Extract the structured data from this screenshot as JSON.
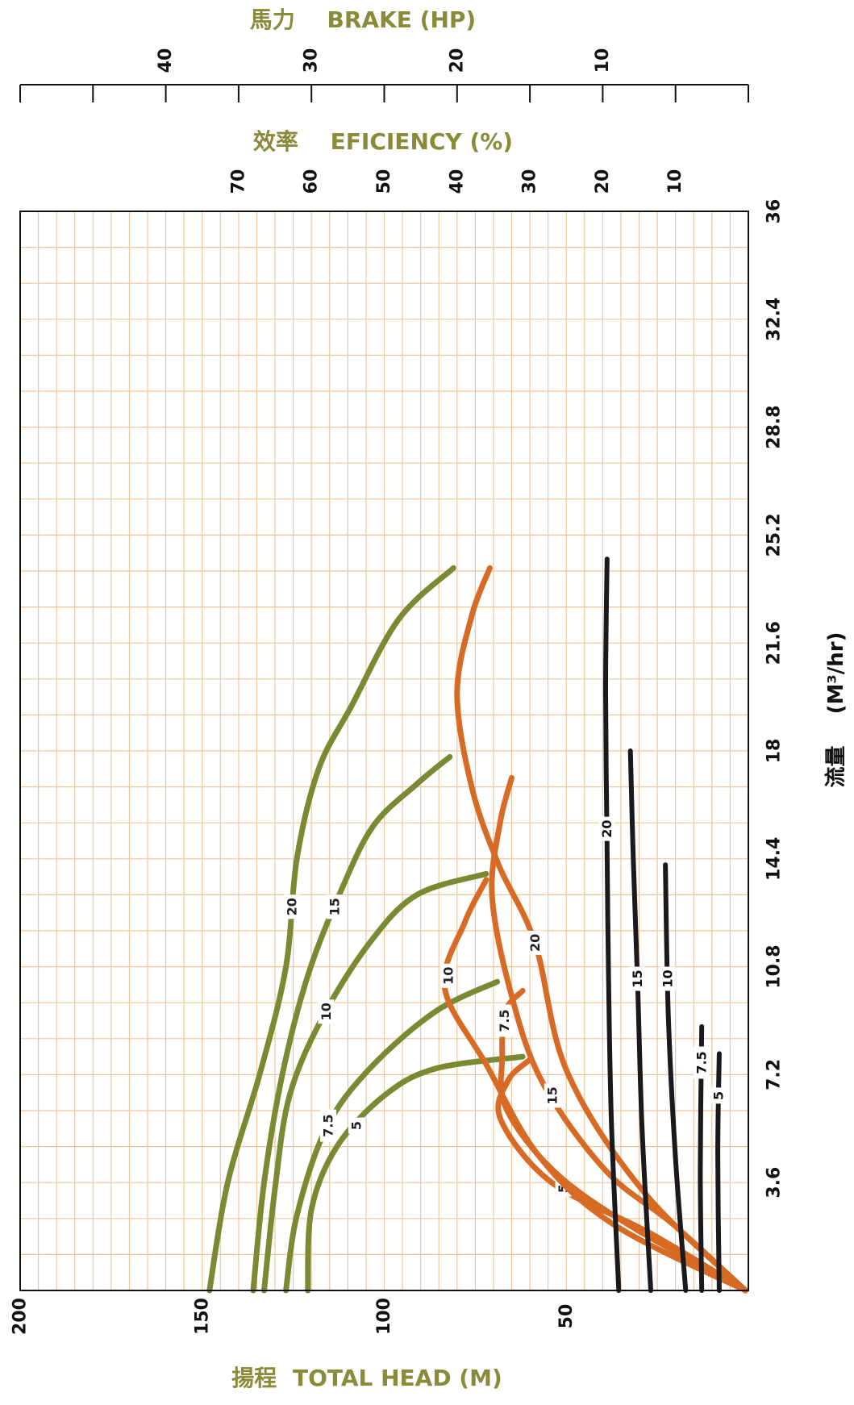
{
  "chart_data": {
    "type": "line",
    "axes": {
      "head": {
        "title_cn": "揚程",
        "title_en": "TOTAL HEAD (M)",
        "range": [
          0,
          200
        ],
        "ticks": [
          "50",
          "100",
          "150",
          "200"
        ]
      },
      "flow": {
        "title_cn": "流量",
        "title_en": "(M³/hr)",
        "range": [
          0,
          36
        ],
        "ticks": [
          "3.6",
          "7.2",
          "10.8",
          "14.4",
          "18",
          "21.6",
          "25.2",
          "28.8",
          "32.4",
          "36"
        ]
      },
      "efficiency": {
        "title_cn": "效率",
        "title_en": "EFICIENCY (%)",
        "range": [
          0,
          100
        ],
        "ticks": [
          "10",
          "20",
          "30",
          "40",
          "50",
          "60",
          "70"
        ]
      },
      "brake": {
        "title_cn": "馬力",
        "title_en": "BRAKE (HP)",
        "range": [
          0,
          50
        ],
        "ticks": [
          "10",
          "20",
          "30",
          "40"
        ]
      }
    },
    "grid": true,
    "series": [
      {
        "group": "head",
        "name": "5",
        "label_at": 5.5,
        "points": [
          [
            0,
            121
          ],
          [
            2.7,
            120
          ],
          [
            4.8,
            113
          ],
          [
            6.5,
            100
          ],
          [
            7.4,
            86
          ],
          [
            7.8,
            62
          ]
        ]
      },
      {
        "group": "head",
        "name": "7.5",
        "label_at": 5.5,
        "points": [
          [
            0,
            127
          ],
          [
            2.5,
            124
          ],
          [
            5.4,
            116
          ],
          [
            7.4,
            104
          ],
          [
            9.3,
            86
          ],
          [
            10.3,
            69
          ]
        ]
      },
      {
        "group": "head",
        "name": "10",
        "label_at": 9.3,
        "points": [
          [
            0,
            133
          ],
          [
            3.4,
            130
          ],
          [
            6.5,
            126
          ],
          [
            9.1,
            117
          ],
          [
            11.6,
            104
          ],
          [
            13.2,
            91
          ],
          [
            13.9,
            72
          ]
        ]
      },
      {
        "group": "head",
        "name": "15",
        "label_at": 12.8,
        "points": [
          [
            0,
            136
          ],
          [
            3.6,
            133
          ],
          [
            7.2,
            128
          ],
          [
            10.5,
            121
          ],
          [
            13.3,
            112
          ],
          [
            15.5,
            103
          ],
          [
            16.9,
            91
          ],
          [
            17.8,
            82
          ]
        ]
      },
      {
        "group": "head",
        "name": "20",
        "label_at": 12.8,
        "points": [
          [
            0,
            148
          ],
          [
            3.6,
            143
          ],
          [
            7.3,
            134
          ],
          [
            10.8,
            127
          ],
          [
            14.4,
            124
          ],
          [
            17.4,
            118
          ],
          [
            19.5,
            109
          ],
          [
            22.4,
            96
          ],
          [
            24.1,
            81
          ]
        ]
      },
      {
        "group": "efficiency",
        "name": "5",
        "label_at": 3.4,
        "points": [
          [
            0,
            0.4
          ],
          [
            1.9,
            13.4
          ],
          [
            3.6,
            27
          ],
          [
            5.7,
            34
          ],
          [
            7.0,
            33
          ],
          [
            7.7,
            30
          ]
        ]
      },
      {
        "group": "efficiency",
        "name": "7.5",
        "label_at": 9.0,
        "points": [
          [
            0,
            0.4
          ],
          [
            2.2,
            16.5
          ],
          [
            4.0,
            26.8
          ],
          [
            6.1,
            33.3
          ],
          [
            7.8,
            33.8
          ],
          [
            9.3,
            33.4
          ],
          [
            10.0,
            31.0
          ]
        ]
      },
      {
        "group": "efficiency",
        "name": "10",
        "label_at": 10.5,
        "points": [
          [
            0,
            0.4
          ],
          [
            2.2,
            18.5
          ],
          [
            4.5,
            28.8
          ],
          [
            7.5,
            35.9
          ],
          [
            10.1,
            41.7
          ],
          [
            12.3,
            38.9
          ],
          [
            13.7,
            36.0
          ]
        ]
      },
      {
        "group": "efficiency",
        "name": "15",
        "label_at": 6.5,
        "points": [
          [
            0,
            0.4
          ],
          [
            2.2,
            10.3
          ],
          [
            4.0,
            19.6
          ],
          [
            7.0,
            28.4
          ],
          [
            10.1,
            32.8
          ],
          [
            13.2,
            35.2
          ],
          [
            15.6,
            34.1
          ],
          [
            17.1,
            32.5
          ]
        ]
      },
      {
        "group": "efficiency",
        "name": "20",
        "label_at": 11.6,
        "points": [
          [
            0,
            0.4
          ],
          [
            3.3,
            14.4
          ],
          [
            7.3,
            24.9
          ],
          [
            11.6,
            29.3
          ],
          [
            14.2,
            34.3
          ],
          [
            16.8,
            38.0
          ],
          [
            19.9,
            40.0
          ],
          [
            22.5,
            38.0
          ],
          [
            24.1,
            35.5
          ]
        ]
      },
      {
        "group": "brake",
        "name": "5",
        "label_at": 6.5,
        "points": [
          [
            0,
            2.0
          ],
          [
            4.5,
            2.1
          ],
          [
            7.9,
            2.0
          ]
        ]
      },
      {
        "group": "brake",
        "name": "7.5",
        "label_at": 7.6,
        "points": [
          [
            0,
            3.2
          ],
          [
            4.0,
            3.3
          ],
          [
            8.8,
            3.2
          ]
        ]
      },
      {
        "group": "brake",
        "name": "10",
        "label_at": 10.4,
        "points": [
          [
            0,
            4.3
          ],
          [
            4.4,
            5.0
          ],
          [
            9.2,
            5.5
          ],
          [
            14.2,
            5.7
          ]
        ]
      },
      {
        "group": "brake",
        "name": "15",
        "label_at": 10.4,
        "points": [
          [
            0,
            6.7
          ],
          [
            5.4,
            7.3
          ],
          [
            10.2,
            7.6
          ],
          [
            14.4,
            7.9
          ],
          [
            18.0,
            8.1
          ]
        ]
      },
      {
        "group": "brake",
        "name": "20",
        "label_at": 15.4,
        "points": [
          [
            0,
            8.9
          ],
          [
            5.6,
            9.4
          ],
          [
            10.5,
            9.6
          ],
          [
            14.8,
            9.7
          ],
          [
            20.0,
            9.8
          ],
          [
            24.4,
            9.7
          ]
        ]
      }
    ]
  },
  "colors": {
    "head": "#7a8a33",
    "efficiency": "#d76a24",
    "brake": "#1a1a1e",
    "grid": "#efc69c",
    "frame": "#111111",
    "title": "#8a8a3a"
  }
}
